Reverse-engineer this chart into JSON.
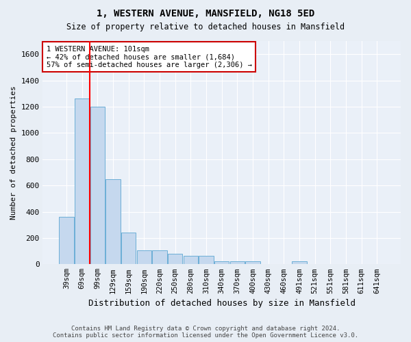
{
  "title1": "1, WESTERN AVENUE, MANSFIELD, NG18 5ED",
  "title2": "Size of property relative to detached houses in Mansfield",
  "xlabel": "Distribution of detached houses by size in Mansfield",
  "ylabel": "Number of detached properties",
  "categories": [
    "39sqm",
    "69sqm",
    "99sqm",
    "129sqm",
    "159sqm",
    "190sqm",
    "220sqm",
    "250sqm",
    "280sqm",
    "310sqm",
    "340sqm",
    "370sqm",
    "400sqm",
    "430sqm",
    "460sqm",
    "491sqm",
    "521sqm",
    "551sqm",
    "581sqm",
    "611sqm",
    "641sqm"
  ],
  "values": [
    360,
    1260,
    1200,
    650,
    240,
    105,
    105,
    80,
    65,
    65,
    20,
    20,
    20,
    0,
    0,
    20,
    0,
    0,
    0,
    0,
    0
  ],
  "bar_color": "#c5d8ee",
  "bar_edge_color": "#6baed6",
  "red_line_x": 1.5,
  "annotation_text": "1 WESTERN AVENUE: 101sqm\n← 42% of detached houses are smaller (1,684)\n57% of semi-detached houses are larger (2,306) →",
  "annotation_box_color": "#ffffff",
  "annotation_box_edge": "#cc0000",
  "ylim": [
    0,
    1700
  ],
  "yticks": [
    0,
    200,
    400,
    600,
    800,
    1000,
    1200,
    1400,
    1600
  ],
  "footer": "Contains HM Land Registry data © Crown copyright and database right 2024.\nContains public sector information licensed under the Open Government Licence v3.0.",
  "bg_color": "#e8eef5",
  "plot_bg_color": "#eaf0f8"
}
